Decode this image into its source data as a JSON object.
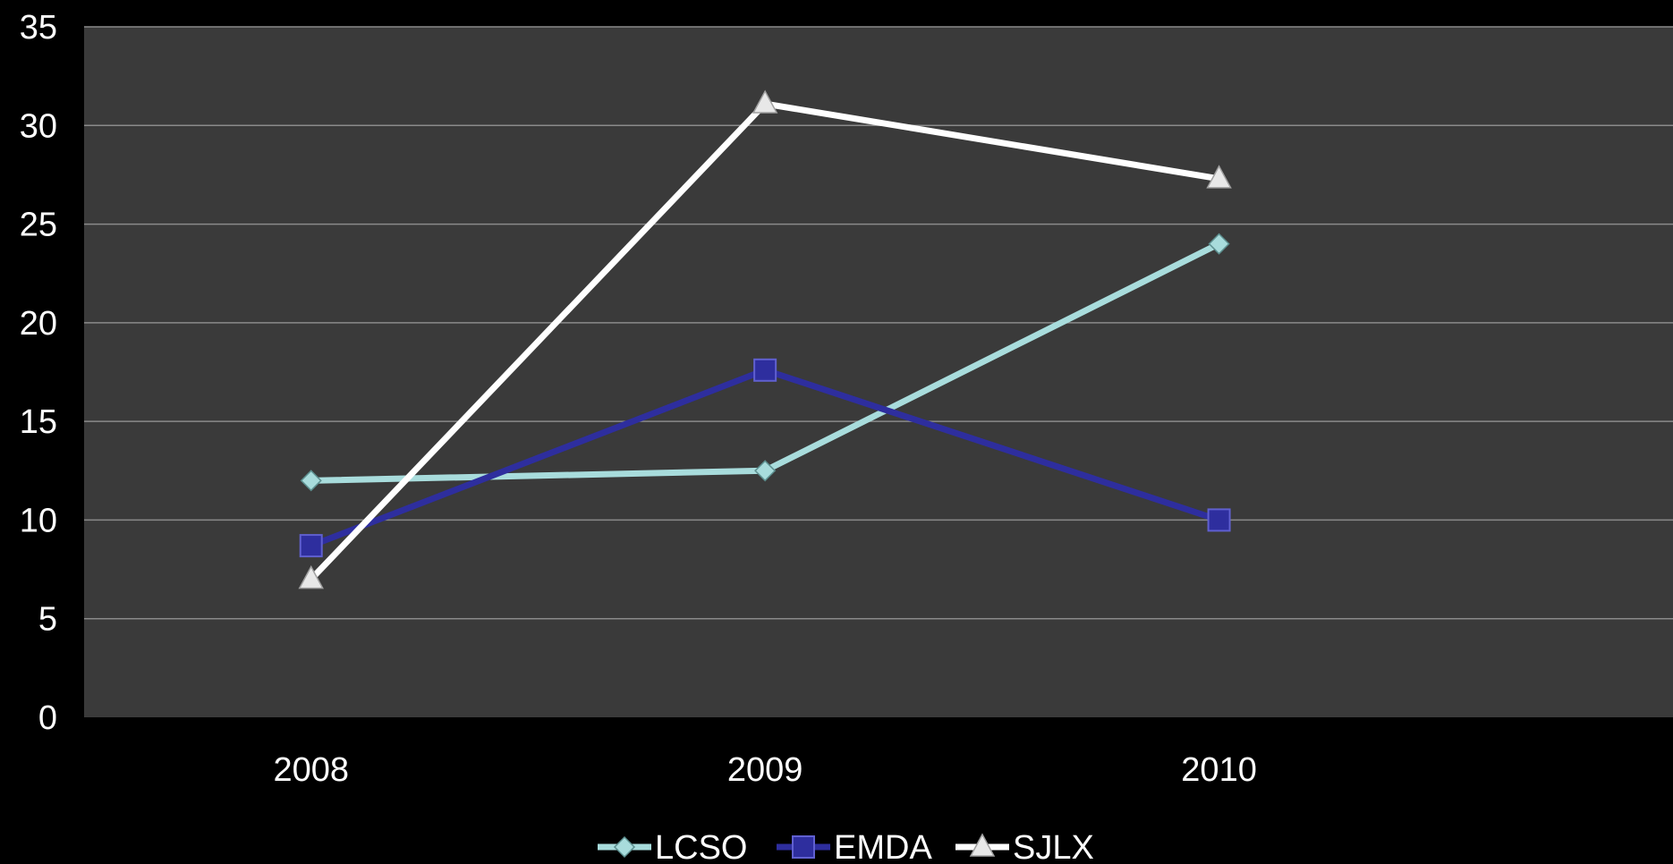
{
  "chart_data": {
    "type": "line",
    "categories": [
      "2008",
      "2009",
      "2010"
    ],
    "ylim": [
      0,
      35
    ],
    "yticks": [
      0,
      5,
      10,
      15,
      20,
      25,
      30,
      35
    ],
    "grid": true,
    "legend_position": "bottom",
    "background": "#3a3a3a",
    "page_background": "#000000",
    "series": [
      {
        "name": "LCSO",
        "values": [
          12,
          12.5,
          24
        ],
        "color": "#a8dcdc",
        "marker": "diamond"
      },
      {
        "name": "EMDA",
        "values": [
          8.7,
          17.6,
          10
        ],
        "color": "#2e2e9e",
        "marker": "square"
      },
      {
        "name": "SJLX",
        "values": [
          7,
          31.1,
          27.3
        ],
        "color": "#ffffff",
        "marker": "triangle"
      }
    ]
  }
}
